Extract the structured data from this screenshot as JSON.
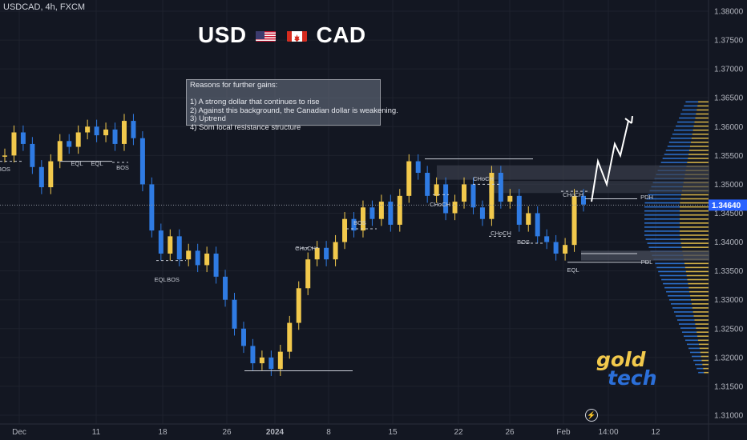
{
  "symbol_label": "USDCAD, 4h, FXCM",
  "headline": {
    "left": "USD",
    "right": "CAD"
  },
  "notes": [
    "Reasons for further gains:",
    "",
    "1) A strong dollar that continues to rise",
    "2) Against this background, the Canadian dollar is weakening.",
    "3) Uptrend",
    "4) Som local resistance structure"
  ],
  "logo": {
    "line1": "gold",
    "line2": "tech"
  },
  "colors": {
    "background": "#131722",
    "up": "#f2c94c",
    "down": "#2f7be3",
    "grid": "#1e222d",
    "text": "#b2b5be",
    "price_tag": "#2962ff"
  },
  "icons": {
    "lightning": "lightning-icon"
  },
  "chart_data": {
    "type": "candlestick",
    "symbol": "USDCAD",
    "timeframe": "4h",
    "ylim": [
      1.3085,
      1.3815
    ],
    "y_ticks": [
      "1.38000",
      "1.37500",
      "1.37000",
      "1.36500",
      "1.36000",
      "1.35500",
      "1.35000",
      "1.34500",
      "1.34000",
      "1.33500",
      "1.33000",
      "1.32500",
      "1.32000",
      "1.31500",
      "1.31000"
    ],
    "x_ticks": [
      "Dec",
      "11",
      "18",
      "26",
      "2024",
      "8",
      "15",
      "22",
      "26",
      "Feb",
      "14:00",
      "12"
    ],
    "current_price": "1.34640",
    "close_path": [
      1.355,
      1.359,
      1.357,
      1.353,
      1.3495,
      1.354,
      1.3575,
      1.3565,
      1.359,
      1.36,
      1.3585,
      1.3595,
      1.357,
      1.361,
      1.358,
      1.35,
      1.342,
      1.338,
      1.341,
      1.337,
      1.3385,
      1.336,
      1.338,
      1.334,
      1.33,
      1.325,
      1.322,
      1.319,
      1.32,
      1.318,
      1.321,
      1.326,
      1.332,
      1.337,
      1.339,
      1.337,
      1.34,
      1.344,
      1.342,
      1.346,
      1.344,
      1.347,
      1.343,
      1.348,
      1.354,
      1.352,
      1.348,
      1.35,
      1.345,
      1.347,
      1.35,
      1.346,
      1.344,
      1.352,
      1.347,
      1.348,
      1.343,
      1.345,
      1.341,
      1.34,
      1.338,
      1.3395,
      1.348,
      1.3465
    ],
    "annotations": [
      {
        "text": "BOS",
        "price": 1.354
      },
      {
        "text": "EQL",
        "price": 1.354
      },
      {
        "text": "EQL",
        "price": 1.354
      },
      {
        "text": "BOS",
        "price": 1.3535
      },
      {
        "text": "EQL",
        "price": 1.3365
      },
      {
        "text": "BOS",
        "price": 1.3365
      },
      {
        "text": "CHoCH",
        "price": 1.339
      },
      {
        "text": "BOS",
        "price": 1.3423
      },
      {
        "text": "CHoCH",
        "price": 1.3482
      },
      {
        "text": "CHoCH",
        "price": 1.35
      },
      {
        "text": "CHoCH",
        "price": 1.341
      },
      {
        "text": "BOS",
        "price": 1.3398
      },
      {
        "text": "CHoCH",
        "price": 1.3488
      },
      {
        "text": "EQL",
        "price": 1.3363
      },
      {
        "text": "PDH",
        "price": 1.3477
      },
      {
        "text": "PDL",
        "price": 1.338
      }
    ],
    "projection": [
      1.347,
      1.354,
      1.35,
      1.357,
      1.355,
      1.361
    ]
  }
}
